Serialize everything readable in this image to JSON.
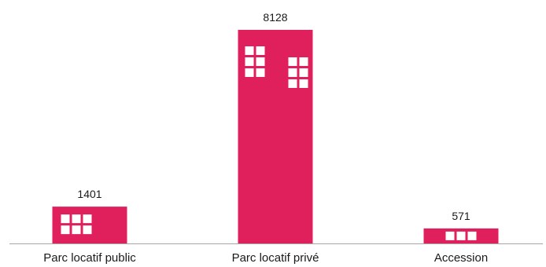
{
  "chart_data": {
    "type": "bar",
    "categories": [
      "Parc locatif public",
      "Parc locatif privé",
      "Accession"
    ],
    "values": [
      1401,
      8128,
      571
    ],
    "value_labels": [
      "1401",
      "8128",
      "571"
    ],
    "ylim": [
      0,
      8128
    ],
    "grid": false,
    "bar_color": "#e01f5d",
    "axis_color": "#a6a6a6",
    "window_color": "#ffffff",
    "bar_decoration": "building-windows"
  }
}
